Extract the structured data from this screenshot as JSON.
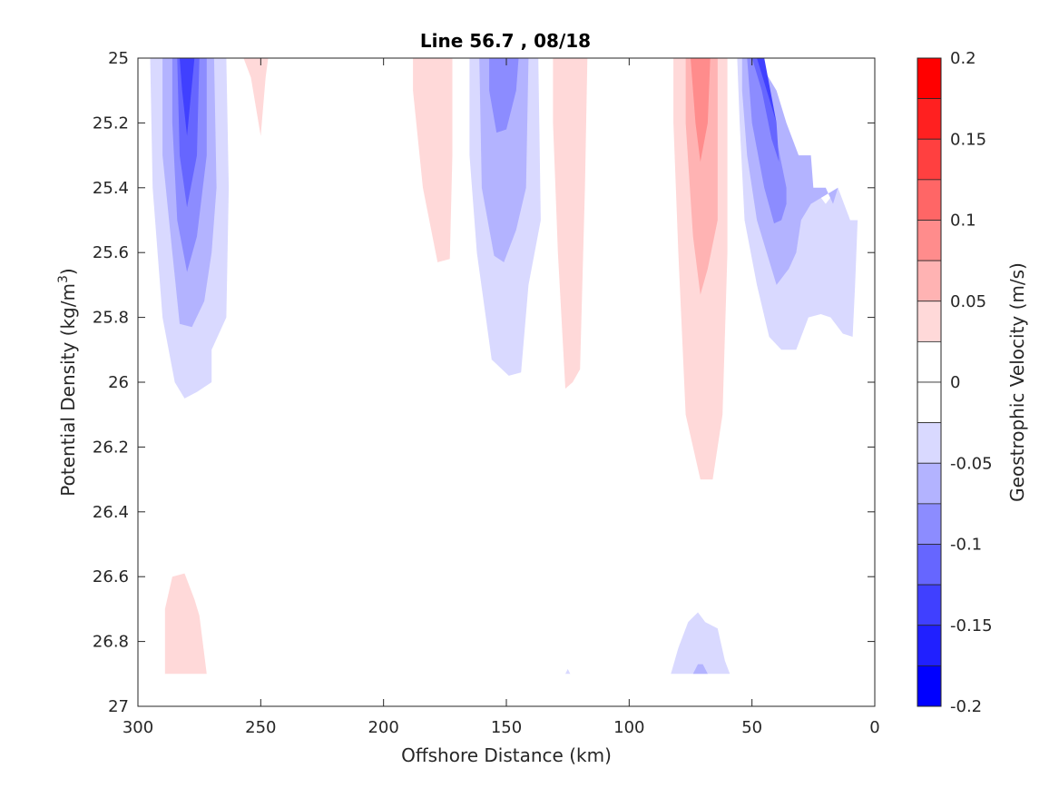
{
  "chart_data": {
    "type": "contour",
    "title": "Line 56.7 , 08/18",
    "xlabel": "Offshore Distance (km)",
    "ylabel": "Potential Density (kg/m",
    "ylabel_sup": "3",
    "ylabel_close": ")",
    "xlim": [
      300,
      0
    ],
    "x_reversed": true,
    "ylim": [
      25,
      27
    ],
    "y_reversed": true,
    "x_ticks": [
      300,
      250,
      200,
      150,
      100,
      50,
      0
    ],
    "y_ticks": [
      25,
      25.2,
      25.4,
      25.6,
      25.8,
      26,
      26.2,
      26.4,
      26.6,
      26.8,
      27
    ],
    "colorbar": {
      "label": "Geostrophic Velocity (m/s)",
      "range": [
        -0.2,
        0.2
      ],
      "ticks": [
        0.2,
        0.15,
        0.1,
        0.05,
        0,
        -0.05,
        -0.1,
        -0.15,
        -0.2
      ],
      "tick_labels": [
        "0.2",
        "0.15",
        "0.1",
        "0.05",
        "0",
        "-0.05",
        "-0.1",
        "-0.15",
        "-0.2"
      ],
      "bands": [
        {
          "min": 0.175,
          "max": 0.2,
          "color": "#ff0000"
        },
        {
          "min": 0.15,
          "max": 0.175,
          "color": "#ff2020"
        },
        {
          "min": 0.125,
          "max": 0.15,
          "color": "#ff4040"
        },
        {
          "min": 0.1,
          "max": 0.125,
          "color": "#ff6666"
        },
        {
          "min": 0.075,
          "max": 0.1,
          "color": "#ff8c8c"
        },
        {
          "min": 0.05,
          "max": 0.075,
          "color": "#ffb3b3"
        },
        {
          "min": 0.025,
          "max": 0.05,
          "color": "#ffd9d9"
        },
        {
          "min": 0,
          "max": 0.025,
          "color": "#ffffff"
        },
        {
          "min": -0.025,
          "max": 0,
          "color": "#ffffff"
        },
        {
          "min": -0.05,
          "max": -0.025,
          "color": "#d9d9ff"
        },
        {
          "min": -0.075,
          "max": -0.05,
          "color": "#b3b3ff"
        },
        {
          "min": -0.1,
          "max": -0.075,
          "color": "#8c8cff"
        },
        {
          "min": -0.125,
          "max": -0.1,
          "color": "#6666ff"
        },
        {
          "min": -0.15,
          "max": -0.125,
          "color": "#4040ff"
        },
        {
          "min": -0.175,
          "max": -0.15,
          "color": "#2020ff"
        },
        {
          "min": -0.2,
          "max": -0.175,
          "color": "#0000ff"
        }
      ]
    },
    "regions": [
      {
        "level": -0.025,
        "color": "#d9d9ff",
        "points": [
          [
            295,
            25
          ],
          [
            264,
            25
          ],
          [
            263,
            25.4
          ],
          [
            264,
            25.8
          ],
          [
            270,
            25.9
          ],
          [
            270,
            26
          ],
          [
            276,
            26.03
          ],
          [
            281,
            26.05
          ],
          [
            285,
            26
          ],
          [
            290,
            25.8
          ],
          [
            294,
            25.4
          ]
        ]
      },
      {
        "level": -0.05,
        "color": "#b3b3ff",
        "points": [
          [
            290,
            25
          ],
          [
            269,
            25
          ],
          [
            268,
            25.4
          ],
          [
            270,
            25.6
          ],
          [
            273,
            25.75
          ],
          [
            278,
            25.83
          ],
          [
            283,
            25.82
          ],
          [
            286,
            25.6
          ],
          [
            290,
            25.3
          ]
        ]
      },
      {
        "level": -0.075,
        "color": "#8c8cff",
        "points": [
          [
            286,
            25
          ],
          [
            272,
            25
          ],
          [
            272,
            25.3
          ],
          [
            276,
            25.55
          ],
          [
            280,
            25.66
          ],
          [
            284,
            25.5
          ],
          [
            286,
            25.2
          ]
        ]
      },
      {
        "level": -0.1,
        "color": "#6666ff",
        "points": [
          [
            284,
            25
          ],
          [
            275,
            25
          ],
          [
            276,
            25.3
          ],
          [
            280,
            25.46
          ],
          [
            283,
            25.3
          ]
        ]
      },
      {
        "level": -0.125,
        "color": "#4040ff",
        "points": [
          [
            283,
            25
          ],
          [
            277,
            25
          ],
          [
            280,
            25.24
          ],
          [
            282,
            25.1
          ]
        ]
      },
      {
        "level": 0.025,
        "color": "#ffd9d9",
        "points": [
          [
            257,
            25
          ],
          [
            247,
            25
          ],
          [
            248,
            25.06
          ],
          [
            250,
            25.24
          ],
          [
            254,
            25.06
          ]
        ]
      },
      {
        "level": 0.025,
        "color": "#ffd9d9",
        "points": [
          [
            188,
            25
          ],
          [
            172,
            25
          ],
          [
            172,
            25.3
          ],
          [
            173,
            25.62
          ],
          [
            178,
            25.63
          ],
          [
            184,
            25.4
          ],
          [
            188,
            25.1
          ]
        ]
      },
      {
        "level": -0.025,
        "color": "#d9d9ff",
        "points": [
          [
            165,
            25
          ],
          [
            137,
            25
          ],
          [
            136,
            25.5
          ],
          [
            141,
            25.7
          ],
          [
            144,
            25.97
          ],
          [
            149,
            25.98
          ],
          [
            156,
            25.93
          ],
          [
            162,
            25.6
          ],
          [
            165,
            25.3
          ]
        ]
      },
      {
        "level": -0.05,
        "color": "#b3b3ff",
        "points": [
          [
            161,
            25
          ],
          [
            141,
            25
          ],
          [
            142,
            25.4
          ],
          [
            146,
            25.53
          ],
          [
            151,
            25.63
          ],
          [
            155,
            25.61
          ],
          [
            160,
            25.4
          ]
        ]
      },
      {
        "level": -0.075,
        "color": "#8c8cff",
        "points": [
          [
            157,
            25
          ],
          [
            145,
            25
          ],
          [
            146,
            25.1
          ],
          [
            150,
            25.22
          ],
          [
            154,
            25.23
          ],
          [
            157,
            25.1
          ]
        ]
      },
      {
        "level": 0.025,
        "color": "#ffd9d9",
        "points": [
          [
            131,
            25
          ],
          [
            117,
            25
          ],
          [
            118,
            25.4
          ],
          [
            120,
            25.96
          ],
          [
            123,
            26
          ],
          [
            126,
            26.02
          ],
          [
            129,
            25.6
          ],
          [
            131,
            25.2
          ]
        ]
      },
      {
        "level": 0.025,
        "color": "#ffd9d9",
        "points": [
          [
            82,
            25
          ],
          [
            60,
            25
          ],
          [
            60,
            25.6
          ],
          [
            62,
            26.1
          ],
          [
            66,
            26.3
          ],
          [
            71,
            26.3
          ],
          [
            77,
            26.1
          ],
          [
            80,
            25.6
          ],
          [
            82,
            25.2
          ]
        ]
      },
      {
        "level": 0.05,
        "color": "#ffb3b3",
        "points": [
          [
            77,
            25
          ],
          [
            64,
            25
          ],
          [
            64,
            25.5
          ],
          [
            68,
            25.65
          ],
          [
            71,
            25.73
          ],
          [
            74,
            25.55
          ],
          [
            77,
            25.2
          ]
        ]
      },
      {
        "level": 0.075,
        "color": "#ff8c8c",
        "points": [
          [
            75,
            25
          ],
          [
            67,
            25
          ],
          [
            68,
            25.2
          ],
          [
            71,
            25.32
          ],
          [
            73,
            25.2
          ]
        ]
      },
      {
        "level": -0.025,
        "color": "#d9d9ff",
        "points": [
          [
            56,
            25
          ],
          [
            53,
            25
          ],
          [
            40,
            25.15
          ],
          [
            36,
            25.3
          ],
          [
            30,
            25.4
          ],
          [
            25,
            25.4
          ],
          [
            20,
            25.45
          ],
          [
            15,
            25.4
          ],
          [
            10,
            25.5
          ],
          [
            7,
            25.5
          ],
          [
            8,
            25.7
          ],
          [
            9,
            25.86
          ],
          [
            13,
            25.85
          ],
          [
            18,
            25.8
          ],
          [
            22,
            25.79
          ],
          [
            27,
            25.8
          ],
          [
            32,
            25.9
          ],
          [
            38,
            25.9
          ],
          [
            43,
            25.86
          ],
          [
            48,
            25.7
          ],
          [
            53,
            25.5
          ],
          [
            55,
            25.2
          ]
        ]
      },
      {
        "level": -0.05,
        "color": "#b3b3ff",
        "points": [
          [
            54,
            25
          ],
          [
            48,
            25
          ],
          [
            40,
            25.1
          ],
          [
            36,
            25.2
          ],
          [
            31,
            25.3
          ],
          [
            26,
            25.3
          ],
          [
            25,
            25.4
          ],
          [
            22,
            25.4
          ],
          [
            20,
            25.4
          ],
          [
            17,
            25.45
          ],
          [
            15,
            25.4
          ],
          [
            26,
            25.45
          ],
          [
            30,
            25.5
          ],
          [
            32,
            25.6
          ],
          [
            35,
            25.65
          ],
          [
            40,
            25.7
          ],
          [
            44,
            25.6
          ],
          [
            48,
            25.5
          ],
          [
            52,
            25.3
          ],
          [
            54,
            25.1
          ]
        ]
      },
      {
        "level": -0.075,
        "color": "#8c8cff",
        "points": [
          [
            52,
            25
          ],
          [
            47,
            25
          ],
          [
            40,
            25.25
          ],
          [
            36,
            25.4
          ],
          [
            36,
            25.45
          ],
          [
            38,
            25.5
          ],
          [
            41,
            25.51
          ],
          [
            45,
            25.4
          ],
          [
            50,
            25.2
          ]
        ]
      },
      {
        "level": -0.1,
        "color": "#6666ff",
        "points": [
          [
            50,
            25
          ],
          [
            46,
            25
          ],
          [
            40,
            25.2
          ],
          [
            39,
            25.32
          ],
          [
            42,
            25.25
          ],
          [
            46,
            25.1
          ]
        ]
      },
      {
        "level": -0.125,
        "color": "#4040ff",
        "points": [
          [
            48,
            25
          ],
          [
            45,
            25
          ],
          [
            40,
            25.2
          ],
          [
            42,
            25.15
          ]
        ]
      },
      {
        "level": 0.025,
        "color": "#ffd9d9",
        "points": [
          [
            289,
            26.9
          ],
          [
            289,
            26.7
          ],
          [
            286,
            26.6
          ],
          [
            281,
            26.59
          ],
          [
            277,
            26.67
          ],
          [
            275,
            26.72
          ],
          [
            272,
            26.9
          ]
        ]
      },
      {
        "level": -0.025,
        "color": "#d9d9ff",
        "points": [
          [
            83,
            26.9
          ],
          [
            80,
            26.82
          ],
          [
            76,
            26.74
          ],
          [
            72,
            26.71
          ],
          [
            69,
            26.74
          ],
          [
            64,
            26.76
          ],
          [
            61,
            26.86
          ],
          [
            59,
            26.9
          ]
        ]
      },
      {
        "level": -0.05,
        "color": "#b3b3ff",
        "points": [
          [
            74,
            26.9
          ],
          [
            72,
            26.87
          ],
          [
            70,
            26.87
          ],
          [
            68,
            26.9
          ]
        ]
      },
      {
        "level": -0.025,
        "color": "#d9d9ff",
        "points": [
          [
            126,
            26.9
          ],
          [
            125,
            26.885
          ],
          [
            124,
            26.9
          ]
        ]
      }
    ]
  }
}
